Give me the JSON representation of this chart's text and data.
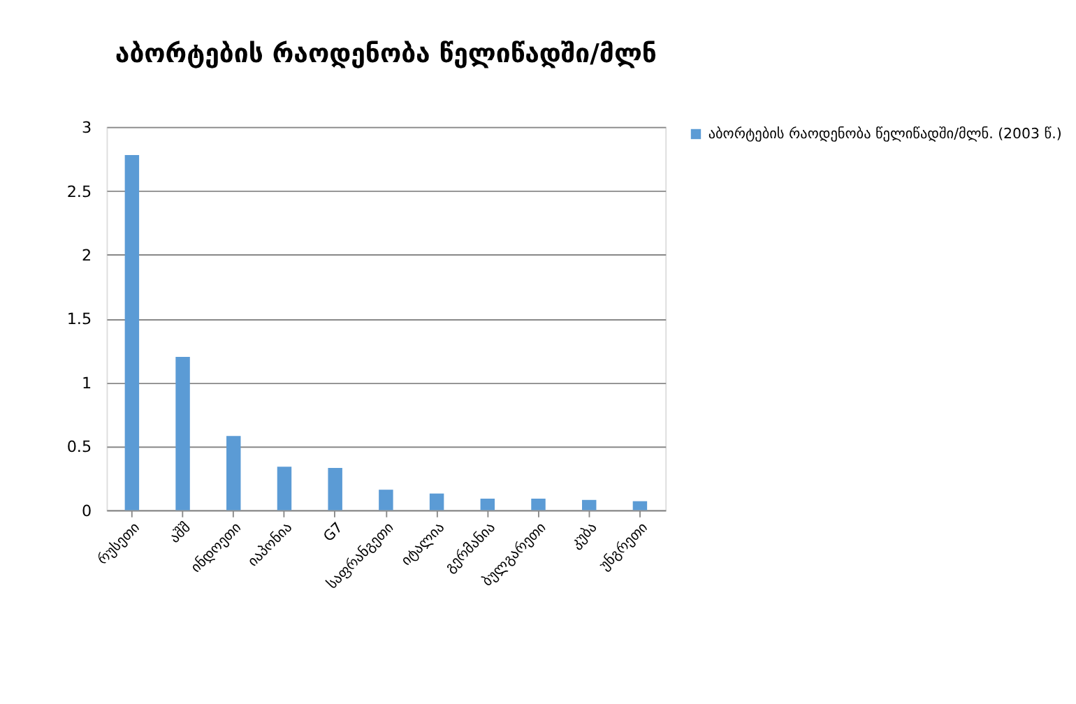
{
  "chart_data": {
    "type": "bar",
    "title": "აბორტების რაოდენობა წელიწადში/მლნ",
    "categories": [
      "რუსეთი",
      "აშშ",
      "ინდოეთი",
      "იაპონია",
      "G7",
      "საფრანგეთი",
      "იტალია",
      "გერმანია",
      "ბულგარეთი",
      "კუბა",
      "უნგრეთი"
    ],
    "series": [
      {
        "name": "აბორტების რაოდენობა წელიწადში/მლნ. (2003 წ.)",
        "color": "#5b9bd5",
        "values": [
          2.78,
          1.2,
          0.58,
          0.34,
          0.33,
          0.16,
          0.13,
          0.09,
          0.09,
          0.08,
          0.07
        ]
      }
    ],
    "ylim": [
      0,
      3
    ],
    "yticks": [
      0,
      0.5,
      1,
      1.5,
      2,
      2.5,
      3
    ],
    "grid": "y",
    "legend": "right"
  }
}
